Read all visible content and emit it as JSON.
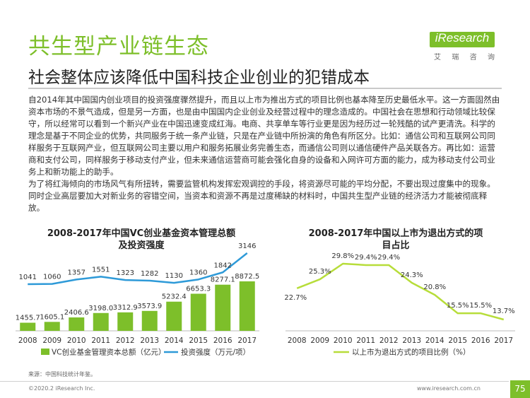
{
  "header": {
    "title": "共生型产业链生态",
    "subtitle": "社会整体应该降低中国科技企业创业的犯错成本",
    "logo_text": "iResearch",
    "logo_sub": [
      "艾",
      "瑞",
      "咨",
      "询"
    ]
  },
  "body": {
    "paragraphs": [
      "自2014年其中国国内创业项目的投资强度骤然提升，而且以上市为推出方式的项目比例也基本降至历史最低水平。这一方面固然由资本市场的不景气造成，但是另一方面，也是由中国国内企业创业及经营过程中的理念造成的。中国社会在思想和行动领域比较保守，所以经常可以看到一个新兴产业在中国迅速变成红海。电商、共享单车等行业更是因为经历过一轮残酷的试产更清洗。科学的理念是基于不同企业的优势，共同服务于统一条产业链，只是在产业链中所扮演的角色有所区分。比如：通信公司和互联网公司同样服务于互联网产业，但互联网公司主要以用户和服务拓展业务完善生态，而通信公司则以通信硬件产品关联各方。再比如：运营商和支付公司，同样服务于移动支付产业，但未来通信运营商可能会强化自身的设备和入网许可方面的能力，成为移动支付公司业务上和新功能上的助手。",
      "为了将红海倾向的市场风气有所扭转，需要监管机构发挥宏观调控的手段，将资源尽可能的平均分配，不要出现过度集中的现象。同时企业高层要加大对新业务的容错空间，当资本和资源不再是过度稀缺的材料时，中国共生型产业链的经济活力才能被彻底释放。"
    ]
  },
  "chart_data": [
    {
      "type": "bar",
      "title_lines": [
        "2008-2017年中国VC创业基金资本管理总额",
        "及投资强度"
      ],
      "categories": [
        "2008",
        "2009",
        "2010",
        "2011",
        "2012",
        "2013",
        "2014",
        "2015",
        "2016",
        "2017"
      ],
      "series": [
        {
          "name": "VC创业基金管理资本总额（亿元）",
          "type": "bar",
          "color": "#7dbf2a",
          "values": [
            1455.7,
            1605.1,
            2406.6,
            3198.0,
            3312.9,
            3573.9,
            5232.4,
            6653.3,
            8277.1,
            8872.5
          ],
          "labels": [
            "1455.7",
            "1605.1",
            "2406.6",
            "3198.0",
            "3312.9",
            "3573.9",
            "5232.4",
            "6653.3",
            "8277.1",
            "8872.5"
          ]
        },
        {
          "name": "投资强度（万元/项）",
          "type": "line",
          "color": "#2e9ad8",
          "values": [
            1041,
            1060,
            1357,
            1551,
            1323,
            1282,
            1130,
            1360,
            1842,
            3146
          ],
          "labels": [
            "1041",
            "1060",
            "1357",
            "1551",
            "1323",
            "1282",
            "1130",
            "1360",
            "1842",
            "3146"
          ]
        }
      ],
      "legend_position": "bottom",
      "grid": false
    },
    {
      "type": "line",
      "title_lines": [
        "2008-2017年中国以上市为退出方式的项",
        "目占比"
      ],
      "categories": [
        "2008",
        "2009",
        "2010",
        "2011",
        "2012",
        "2013",
        "2014",
        "2015",
        "2016",
        "2017"
      ],
      "series": [
        {
          "name": "以上市为退出方式的项目比例（%）",
          "color": "#b7dd3a",
          "values": [
            22.7,
            25.3,
            29.8,
            29.4,
            29.4,
            24.3,
            20.8,
            15.5,
            15.5,
            13.7
          ],
          "labels": [
            "22.7%",
            "25.3%",
            "29.8%",
            "29.4%",
            "29.4%",
            "24.3%",
            "20.8%",
            "15.5%",
            "15.5%",
            "13.7%"
          ]
        }
      ],
      "legend_position": "bottom",
      "grid": false
    }
  ],
  "footer": {
    "source": "来源：中国科技统计年鉴。",
    "copyright": "©2020.2 iResearch Inc.",
    "website": "www.iresearch.com.cn",
    "page_number": "75"
  }
}
